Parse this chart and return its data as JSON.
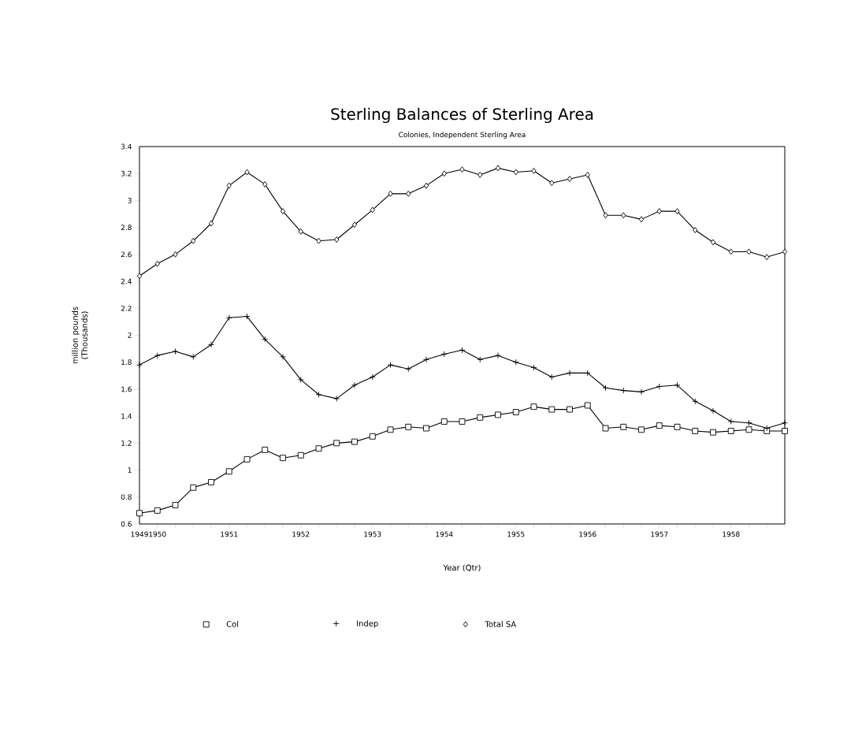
{
  "chart_data": {
    "type": "line",
    "title": "Sterling Balances of Sterling Area",
    "subtitle": "Colonies, Independent Sterling Area",
    "xlabel": "Year (Qtr)",
    "ylabel": "million pounds (Thousands)",
    "categories": [
      "1949",
      "1950",
      null,
      null,
      null,
      "1951",
      null,
      null,
      null,
      "1952",
      null,
      null,
      null,
      "1953",
      null,
      null,
      null,
      "1954",
      null,
      null,
      null,
      "1955",
      null,
      null,
      null,
      "1956",
      null,
      null,
      null,
      "1957",
      null,
      null,
      null,
      "1958",
      null,
      null,
      null
    ],
    "ylim": [
      0.6,
      3.4
    ],
    "yticks": [
      0.6,
      0.8,
      1,
      1.2,
      1.4,
      1.6,
      1.8,
      2,
      2.2,
      2.4,
      2.6,
      2.8,
      3,
      3.2,
      3.4
    ],
    "legend": "bottom",
    "series": [
      {
        "name": "Col",
        "color": "#000000",
        "marker": "square",
        "values": [
          0.68,
          0.7,
          0.74,
          0.87,
          0.91,
          0.99,
          1.08,
          1.15,
          1.09,
          1.11,
          1.16,
          1.2,
          1.21,
          1.25,
          1.3,
          1.32,
          1.31,
          1.36,
          1.36,
          1.39,
          1.41,
          1.43,
          1.47,
          1.45,
          1.45,
          1.48,
          1.31,
          1.32,
          1.3,
          1.33,
          1.32,
          1.29,
          1.28,
          1.29,
          1.3,
          1.29,
          1.29
        ]
      },
      {
        "name": "Indep",
        "color": "#000000",
        "marker": "cross",
        "values": [
          1.78,
          1.85,
          1.88,
          1.84,
          1.93,
          2.13,
          2.14,
          1.97,
          1.84,
          1.67,
          1.56,
          1.53,
          1.63,
          1.69,
          1.78,
          1.75,
          1.82,
          1.86,
          1.89,
          1.82,
          1.85,
          1.8,
          1.76,
          1.69,
          1.72,
          1.72,
          1.61,
          1.59,
          1.58,
          1.62,
          1.63,
          1.51,
          1.44,
          1.36,
          1.35,
          1.31,
          1.35
        ]
      },
      {
        "name": "Total SA",
        "color": "#000000",
        "marker": "diamond",
        "values": [
          2.44,
          2.53,
          2.6,
          2.7,
          2.83,
          3.11,
          3.21,
          3.12,
          2.92,
          2.77,
          2.7,
          2.71,
          2.82,
          2.93,
          3.05,
          3.05,
          3.11,
          3.2,
          3.23,
          3.19,
          3.24,
          3.21,
          3.22,
          3.13,
          3.16,
          3.19,
          2.89,
          2.89,
          2.86,
          2.92,
          2.92,
          2.78,
          2.69,
          2.62,
          2.62,
          2.58,
          2.62
        ]
      }
    ]
  }
}
